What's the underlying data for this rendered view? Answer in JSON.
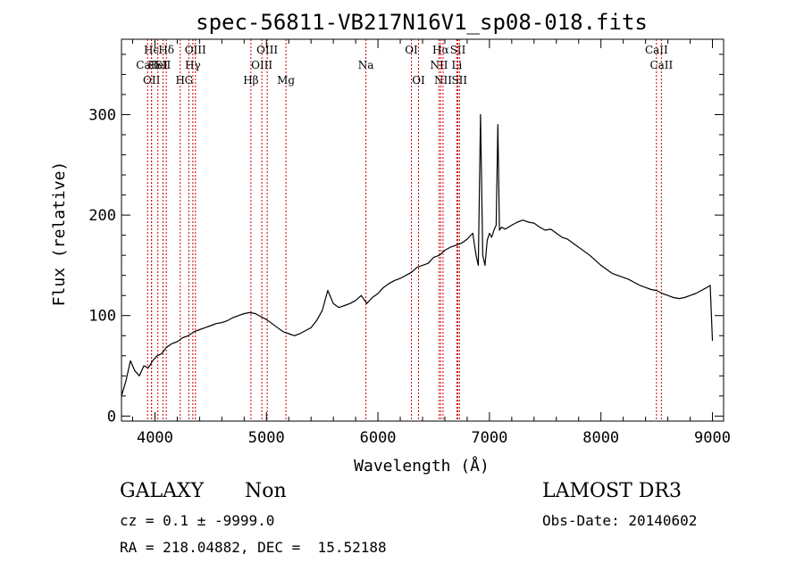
{
  "chart_data": {
    "type": "line",
    "title": "spec-56811-VB217N16V1_sp08-018.fits",
    "xlabel": "Wavelength (Å)",
    "ylabel": "Flux (relative)",
    "xlim": [
      3700,
      9100
    ],
    "ylim": [
      -5,
      375
    ],
    "xticks": [
      4000,
      5000,
      6000,
      7000,
      8000,
      9000
    ],
    "xtick_labels": [
      "4000",
      "5000",
      "6000",
      "7000",
      "8000",
      "9000"
    ],
    "yticks": [
      0,
      100,
      200,
      300
    ],
    "ytick_labels": [
      "0",
      "100",
      "200",
      "300"
    ],
    "grid": false,
    "series": [
      {
        "name": "flux",
        "x": [
          3700,
          3740,
          3780,
          3820,
          3860,
          3900,
          3940,
          3980,
          4020,
          4060,
          4100,
          4150,
          4200,
          4250,
          4300,
          4350,
          4400,
          4450,
          4500,
          4550,
          4600,
          4650,
          4700,
          4750,
          4800,
          4850,
          4900,
          4950,
          5000,
          5050,
          5100,
          5150,
          5200,
          5250,
          5300,
          5350,
          5400,
          5450,
          5500,
          5550,
          5600,
          5650,
          5700,
          5750,
          5800,
          5850,
          5900,
          5950,
          6000,
          6050,
          6100,
          6150,
          6200,
          6250,
          6300,
          6350,
          6400,
          6450,
          6500,
          6550,
          6600,
          6650,
          6700,
          6750,
          6800,
          6850,
          6880,
          6900,
          6920,
          6940,
          6960,
          6980,
          7000,
          7020,
          7040,
          7060,
          7075,
          7090,
          7110,
          7140,
          7200,
          7250,
          7300,
          7350,
          7400,
          7450,
          7500,
          7550,
          7600,
          7650,
          7700,
          7750,
          7800,
          7850,
          7900,
          7950,
          8000,
          8050,
          8100,
          8150,
          8200,
          8250,
          8300,
          8350,
          8400,
          8450,
          8500,
          8550,
          8600,
          8650,
          8700,
          8750,
          8800,
          8850,
          8900,
          8950,
          8980,
          9000
        ],
        "y": [
          20,
          35,
          55,
          45,
          40,
          50,
          48,
          55,
          60,
          62,
          68,
          72,
          74,
          78,
          80,
          84,
          86,
          88,
          90,
          92,
          93,
          95,
          98,
          100,
          102,
          103,
          102,
          99,
          96,
          92,
          88,
          84,
          82,
          80,
          82,
          85,
          88,
          95,
          105,
          125,
          112,
          108,
          110,
          112,
          115,
          120,
          112,
          118,
          122,
          128,
          132,
          135,
          137,
          140,
          143,
          148,
          150,
          152,
          158,
          160,
          165,
          168,
          170,
          172,
          176,
          182,
          160,
          150,
          300,
          160,
          150,
          175,
          182,
          178,
          185,
          190,
          290,
          185,
          188,
          186,
          190,
          193,
          195,
          193,
          192,
          188,
          185,
          186,
          182,
          178,
          176,
          172,
          168,
          164,
          160,
          155,
          150,
          146,
          142,
          140,
          138,
          136,
          133,
          130,
          128,
          126,
          125,
          122,
          120,
          118,
          117,
          118,
          120,
          122,
          125,
          128,
          130,
          75
        ]
      }
    ],
    "line_markers": [
      {
        "wavelength": 3934,
        "label": "CaII",
        "row": 2
      },
      {
        "wavelength": 3969,
        "label": "Hϵ",
        "row": 1
      },
      {
        "wavelength": 3970,
        "label": "OII",
        "row": 3
      },
      {
        "wavelength": 4026,
        "label": "HeI",
        "row": 2
      },
      {
        "wavelength": 4102,
        "label": "Hδ",
        "row": 1
      },
      {
        "wavelength": 4072,
        "label": "SII",
        "row": 2
      },
      {
        "wavelength": 4227,
        "label": "H",
        "row": 3
      },
      {
        "wavelength": 4304,
        "label": "G",
        "row": 3
      },
      {
        "wavelength": 4340,
        "label": "Hγ",
        "row": 2
      },
      {
        "wavelength": 4363,
        "label": "OIII",
        "row": 1
      },
      {
        "wavelength": 4861,
        "label": "Hβ",
        "row": 3
      },
      {
        "wavelength": 4959,
        "label": "OIII",
        "row": 2
      },
      {
        "wavelength": 5007,
        "label": "OIII",
        "row": 1
      },
      {
        "wavelength": 5175,
        "label": "Mg",
        "row": 3
      },
      {
        "wavelength": 5892,
        "label": "Na",
        "row": 2
      },
      {
        "wavelength": 6300,
        "label": "OI",
        "row": 1
      },
      {
        "wavelength": 6364,
        "label": "OI",
        "row": 3
      },
      {
        "wavelength": 6548,
        "label": "NII",
        "row": 2
      },
      {
        "wavelength": 6563,
        "label": "Hα",
        "row": 1
      },
      {
        "wavelength": 6584,
        "label": "NII",
        "row": 3
      },
      {
        "wavelength": 6708,
        "label": "Li",
        "row": 2
      },
      {
        "wavelength": 6717,
        "label": "SII",
        "row": 1
      },
      {
        "wavelength": 6731,
        "label": "SII",
        "row": 3
      },
      {
        "wavelength": 8498,
        "label": "CaII",
        "row": 1
      },
      {
        "wavelength": 8542,
        "label": "CaII",
        "row": 2
      }
    ]
  },
  "info": {
    "class_label": "GALAXY",
    "subclass_label": "Non",
    "survey_label": "LAMOST DR3",
    "cz_text": "cz = 0.1 ± -9999.0",
    "obs_date_text": "Obs-Date: 20140602",
    "coords_text": "RA = 218.04882, DEC =  15.52188"
  },
  "colors": {
    "line": "#000000",
    "marker": "#cc0000",
    "axis": "#000000"
  }
}
